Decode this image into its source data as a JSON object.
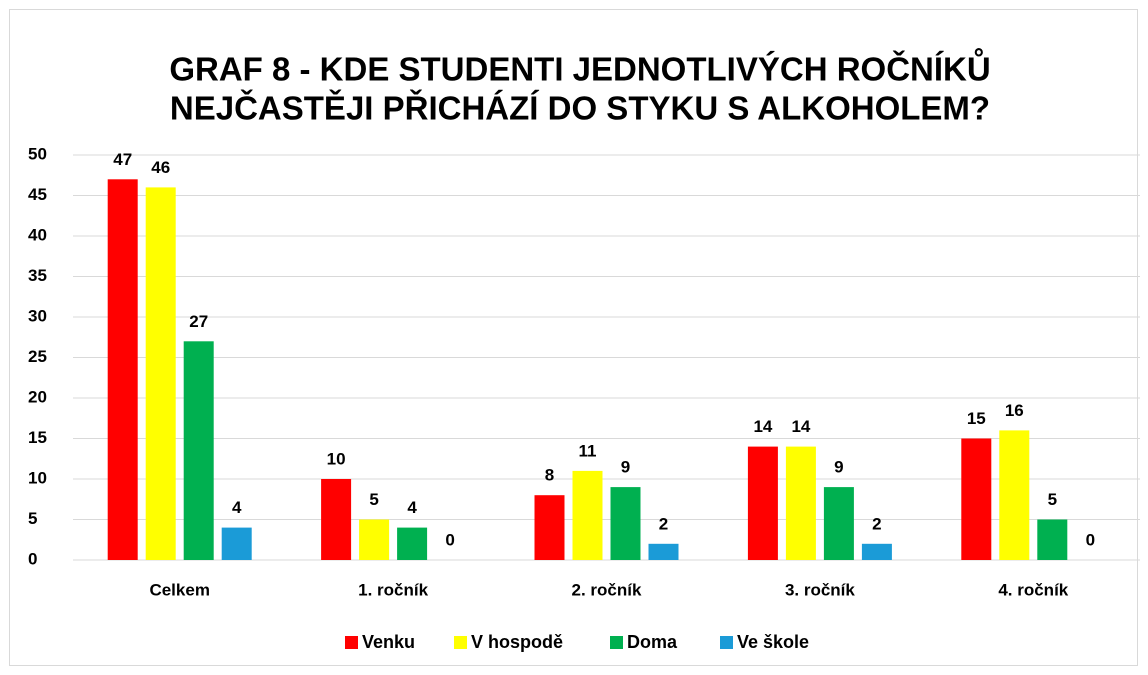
{
  "chart_data": {
    "type": "bar",
    "title": [
      "GRAF 8 - KDE STUDENTI JEDNOTLIVÝCH ROČNÍKŮ",
      "NEJČASTĚJI PŘICHÁZÍ DO STYKU S ALKOHOLEM?"
    ],
    "categories": [
      "Celkem",
      "1. ročník",
      "2. ročník",
      "3. ročník",
      "4. ročník"
    ],
    "series": [
      {
        "name": "Venku",
        "color": "#ff0000",
        "values": [
          47,
          10,
          8,
          14,
          15
        ]
      },
      {
        "name": "V hospodě",
        "color": "#ffff00",
        "values": [
          46,
          5,
          11,
          14,
          16
        ]
      },
      {
        "name": "Doma",
        "color": "#00b050",
        "values": [
          27,
          4,
          9,
          9,
          5
        ]
      },
      {
        "name": "Ve škole",
        "color": "#1b9bd7",
        "values": [
          4,
          0,
          2,
          2,
          0
        ]
      }
    ],
    "ylim": [
      0,
      50
    ],
    "yticks": [
      0,
      5,
      10,
      15,
      20,
      25,
      30,
      35,
      40,
      45,
      50
    ],
    "grid": true,
    "legend": "bottom"
  }
}
